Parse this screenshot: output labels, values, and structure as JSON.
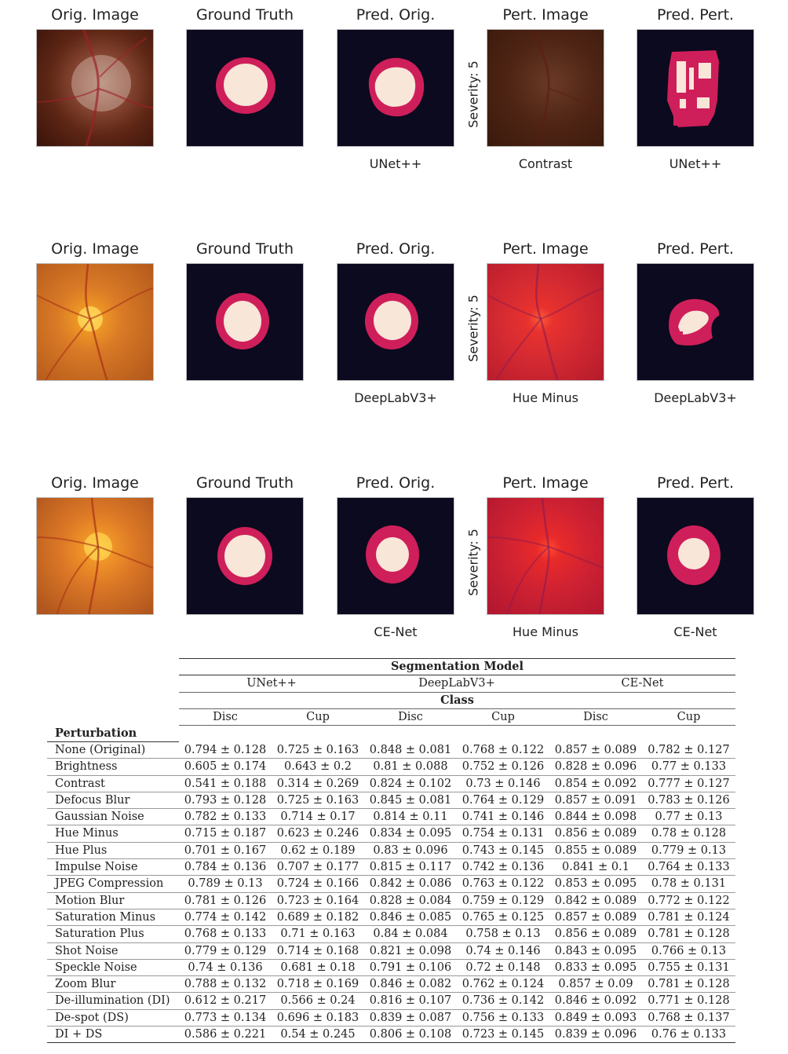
{
  "panels": {
    "titles": [
      "Orig. Image",
      "Ground Truth",
      "Pred. Orig.",
      "Pert. Image",
      "Pred. Pert."
    ],
    "rows": [
      {
        "model": "UNet++",
        "perturbation": "Contrast",
        "severity": "Severity: 5"
      },
      {
        "model": "DeepLabV3+",
        "perturbation": "Hue Minus",
        "severity": "Severity: 5"
      },
      {
        "model": "CE-Net",
        "perturbation": "Hue Minus",
        "severity": "Severity: 5"
      }
    ]
  },
  "table": {
    "group_header": "Segmentation Model",
    "models": [
      "UNet++",
      "DeepLabV3+",
      "CE-Net"
    ],
    "class_header": "Class",
    "classes": [
      "Disc",
      "Cup",
      "Disc",
      "Cup",
      "Disc",
      "Cup"
    ],
    "row_header": "Perturbation",
    "rows": [
      {
        "name": "None (Original)",
        "values": [
          "0.794 ± 0.128",
          "0.725 ± 0.163",
          "0.848 ± 0.081",
          "0.768 ± 0.122",
          "0.857 ± 0.089",
          "0.782 ± 0.127"
        ]
      },
      {
        "name": "Brightness",
        "values": [
          "0.605 ± 0.174",
          "0.643 ± 0.2",
          "0.81 ± 0.088",
          "0.752 ± 0.126",
          "0.828 ± 0.096",
          "0.77 ± 0.133"
        ]
      },
      {
        "name": "Contrast",
        "values": [
          "0.541 ± 0.188",
          "0.314 ± 0.269",
          "0.824 ± 0.102",
          "0.73 ± 0.146",
          "0.854 ± 0.092",
          "0.777 ± 0.127"
        ]
      },
      {
        "name": "Defocus Blur",
        "values": [
          "0.793 ± 0.128",
          "0.725 ± 0.163",
          "0.845 ± 0.081",
          "0.764 ± 0.129",
          "0.857 ± 0.091",
          "0.783 ± 0.126"
        ]
      },
      {
        "name": "Gaussian Noise",
        "values": [
          "0.782 ± 0.133",
          "0.714 ± 0.17",
          "0.814 ± 0.11",
          "0.741 ± 0.146",
          "0.844 ± 0.098",
          "0.77 ± 0.13"
        ]
      },
      {
        "name": "Hue Minus",
        "values": [
          "0.715 ± 0.187",
          "0.623 ± 0.246",
          "0.834 ± 0.095",
          "0.754 ± 0.131",
          "0.856 ± 0.089",
          "0.78 ± 0.128"
        ]
      },
      {
        "name": "Hue Plus",
        "values": [
          "0.701 ± 0.167",
          "0.62 ± 0.189",
          "0.83 ± 0.096",
          "0.743 ± 0.145",
          "0.855 ± 0.089",
          "0.779 ± 0.13"
        ]
      },
      {
        "name": "Impulse Noise",
        "values": [
          "0.784 ± 0.136",
          "0.707 ± 0.177",
          "0.815 ± 0.117",
          "0.742 ± 0.136",
          "0.841 ± 0.1",
          "0.764 ± 0.133"
        ]
      },
      {
        "name": "JPEG Compression",
        "values": [
          "0.789 ± 0.13",
          "0.724 ± 0.166",
          "0.842 ± 0.086",
          "0.763 ± 0.122",
          "0.853 ± 0.095",
          "0.78 ± 0.131"
        ]
      },
      {
        "name": "Motion Blur",
        "values": [
          "0.781 ± 0.126",
          "0.723 ± 0.164",
          "0.828 ± 0.084",
          "0.759 ± 0.129",
          "0.842 ± 0.089",
          "0.772 ± 0.122"
        ]
      },
      {
        "name": "Saturation Minus",
        "values": [
          "0.774 ± 0.142",
          "0.689 ± 0.182",
          "0.846 ± 0.085",
          "0.765 ± 0.125",
          "0.857 ± 0.089",
          "0.781 ± 0.124"
        ]
      },
      {
        "name": "Saturation Plus",
        "values": [
          "0.768 ± 0.133",
          "0.71 ± 0.163",
          "0.84 ± 0.084",
          "0.758 ± 0.13",
          "0.856 ± 0.089",
          "0.781 ± 0.128"
        ]
      },
      {
        "name": "Shot Noise",
        "values": [
          "0.779 ± 0.129",
          "0.714 ± 0.168",
          "0.821 ± 0.098",
          "0.74 ± 0.146",
          "0.843 ± 0.095",
          "0.766 ± 0.13"
        ]
      },
      {
        "name": "Speckle Noise",
        "values": [
          "0.74 ± 0.136",
          "0.681 ± 0.18",
          "0.791 ± 0.106",
          "0.72 ± 0.148",
          "0.833 ± 0.095",
          "0.755 ± 0.131"
        ]
      },
      {
        "name": "Zoom Blur",
        "values": [
          "0.788 ± 0.132",
          "0.718 ± 0.169",
          "0.846 ± 0.082",
          "0.762 ± 0.124",
          "0.857 ± 0.09",
          "0.781 ± 0.128"
        ]
      },
      {
        "name": "De-illumination (DI)",
        "values": [
          "0.612 ± 0.217",
          "0.566 ± 0.24",
          "0.816 ± 0.107",
          "0.736 ± 0.142",
          "0.846 ± 0.092",
          "0.771 ± 0.128"
        ]
      },
      {
        "name": "De-spot (DS)",
        "values": [
          "0.773 ± 0.134",
          "0.696 ± 0.183",
          "0.839 ± 0.087",
          "0.756 ± 0.133",
          "0.849 ± 0.093",
          "0.768 ± 0.137"
        ]
      },
      {
        "name": "DI + DS",
        "values": [
          "0.586 ± 0.221",
          "0.54 ± 0.245",
          "0.806 ± 0.108",
          "0.723 ± 0.145",
          "0.839 ± 0.096",
          "0.76 ± 0.133"
        ]
      }
    ]
  },
  "colors": {
    "mask_background": "#0b0a1f",
    "disc": "#cf1f5a",
    "cup": "#f8e6d8",
    "fundus_dark": "#5a2414",
    "fundus_orange": "#e07a1c",
    "fundus_red": "#d8262e"
  }
}
